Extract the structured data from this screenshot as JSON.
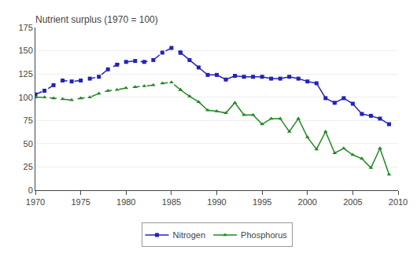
{
  "chart_data": {
    "type": "line",
    "title": "Nutrient surplus (1970 = 100)",
    "x": [
      1970,
      1971,
      1972,
      1973,
      1974,
      1975,
      1976,
      1977,
      1978,
      1979,
      1980,
      1981,
      1982,
      1983,
      1984,
      1985,
      1986,
      1987,
      1988,
      1989,
      1990,
      1991,
      1992,
      1993,
      1994,
      1995,
      1996,
      1997,
      1998,
      1999,
      2000,
      2001,
      2002,
      2003,
      2004,
      2005,
      2006,
      2007,
      2008,
      2009
    ],
    "series": [
      {
        "name": "Nitrogen",
        "color": "#2222bb",
        "marker": "square",
        "line_style": "dashed",
        "values": [
          103,
          107,
          113,
          118,
          117,
          118,
          120,
          122,
          130,
          135,
          138,
          139,
          138,
          140,
          148,
          153,
          148,
          null,
          null,
          null,
          null,
          null,
          null,
          null,
          null,
          null,
          null,
          null,
          null,
          null,
          null,
          null,
          null,
          null,
          null,
          null,
          null,
          null,
          null,
          null
        ]
      },
      {
        "name": "Nitrogen",
        "color": "#2222bb",
        "marker": "square",
        "line_style": "solid",
        "values": [
          null,
          null,
          null,
          null,
          null,
          null,
          null,
          null,
          null,
          null,
          null,
          null,
          null,
          null,
          null,
          null,
          148,
          140,
          132,
          124,
          124,
          119,
          123,
          122,
          122,
          122,
          120,
          120,
          122,
          120,
          117,
          115,
          99,
          94,
          99,
          93,
          82,
          80,
          77,
          71
        ]
      },
      {
        "name": "Phosphorus",
        "color": "#228822",
        "marker": "triangle-up",
        "line_style": "dashed",
        "values": [
          100,
          100,
          99,
          98,
          97,
          99,
          100,
          104,
          107,
          108,
          110,
          111,
          112,
          113,
          115,
          116,
          108,
          null,
          null,
          null,
          null,
          null,
          null,
          null,
          null,
          null,
          null,
          null,
          null,
          null,
          null,
          null,
          null,
          null,
          null,
          null,
          null,
          null,
          null,
          null
        ]
      },
      {
        "name": "Phosphorus",
        "color": "#228822",
        "marker": "triangle-up",
        "line_style": "solid",
        "values": [
          null,
          null,
          null,
          null,
          null,
          null,
          null,
          null,
          null,
          null,
          null,
          null,
          null,
          null,
          null,
          null,
          108,
          101,
          95,
          86,
          85,
          83,
          94,
          81,
          81,
          71,
          77,
          77,
          63,
          77,
          57,
          44,
          63,
          40,
          45,
          38,
          34,
          24,
          45,
          17
        ]
      }
    ],
    "xlim": [
      1970,
      2010
    ],
    "xticks": [
      1970,
      1975,
      1980,
      1985,
      1990,
      1995,
      2000,
      2005,
      2010
    ],
    "ylim": [
      0,
      175
    ],
    "yticks": [
      0,
      25,
      50,
      75,
      100,
      125,
      150,
      175
    ],
    "grid": true,
    "legend": "bottom"
  }
}
